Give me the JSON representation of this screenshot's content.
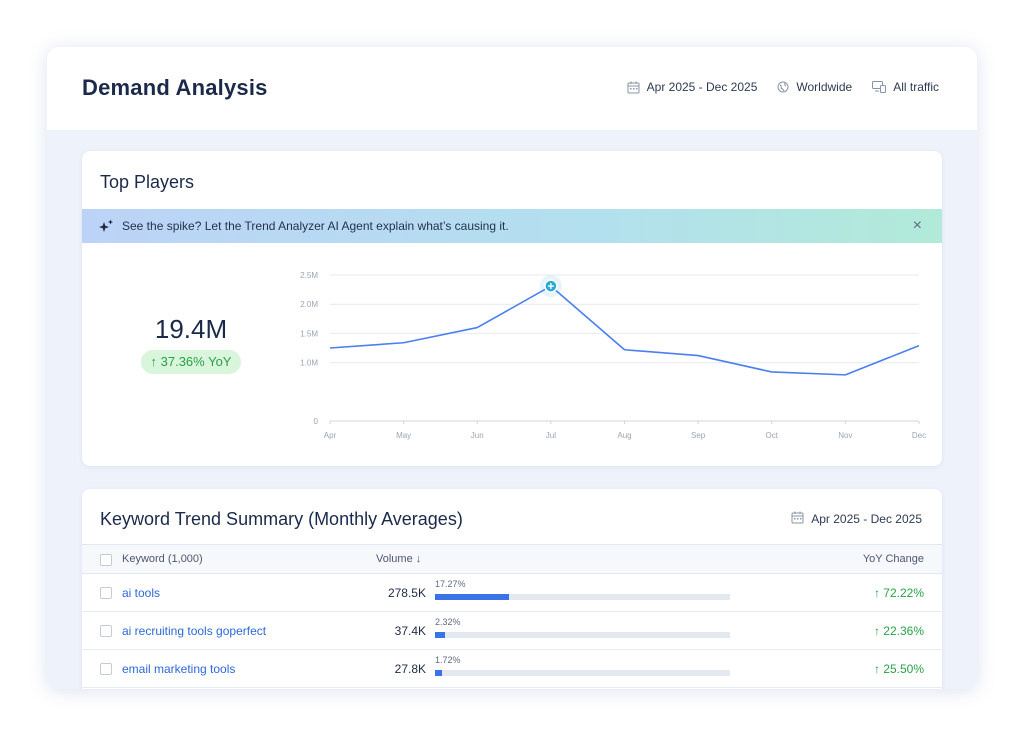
{
  "header": {
    "title": "Demand Analysis",
    "date_range": "Apr 2025 - Dec 2025",
    "region": "Worldwide",
    "traffic": "All traffic"
  },
  "top_players": {
    "title": "Top Players",
    "banner_text": "See the spike? Let the Trend Analyzer AI Agent explain what’s causing it.",
    "banner_close": "×",
    "total_value": "19.4M",
    "yoy_badge": "↑ 37.36% YoY"
  },
  "chart_data": {
    "type": "line",
    "categories": [
      "Apr",
      "May",
      "Jun",
      "Jul",
      "Aug",
      "Sep",
      "Oct",
      "Nov",
      "Dec"
    ],
    "series": [
      {
        "values": [
          1.25,
          1.34,
          1.6,
          2.31,
          1.22,
          1.12,
          0.84,
          0.79,
          1.29
        ]
      }
    ],
    "y_ticks": [
      "0",
      "1.0M",
      "1.5M",
      "2.0M",
      "2.5M"
    ],
    "y_tick_values": [
      0,
      1.0,
      1.5,
      2.0,
      2.5
    ],
    "ylim": [
      0,
      2.5
    ],
    "y_unit": "M",
    "grid": true,
    "highlight_index": 3,
    "line_color": "#4a7ff0",
    "marker_color": "#27a9d6"
  },
  "keyword_summary": {
    "title": "Keyword Trend Summary (Monthly Averages)",
    "date_range": "Apr 2025 - Dec 2025",
    "columns": {
      "keyword": "Keyword (1,000)",
      "volume": "Volume ↓",
      "yoy": "YoY Change"
    },
    "rows": [
      {
        "keyword": "ai tools",
        "volume": "278.5K",
        "share": "17.27%",
        "share_value": 17.27,
        "yoy": "↑ 72.22%"
      },
      {
        "keyword": "ai recruiting tools goperfect",
        "volume": "37.4K",
        "share": "2.32%",
        "share_value": 2.32,
        "yoy": "↑ 22.36%"
      },
      {
        "keyword": "email marketing tools",
        "volume": "27.8K",
        "share": "1.72%",
        "share_value": 1.72,
        "yoy": "↑ 25.50%"
      }
    ]
  },
  "icons": {
    "calendar": "calendar-icon",
    "globe": "globe-icon",
    "devices": "devices-icon",
    "sparkle": "sparkle-icon"
  },
  "colors": {
    "accent": "#3b73e6",
    "positive": "#2aa047",
    "link": "#2d68d8"
  }
}
